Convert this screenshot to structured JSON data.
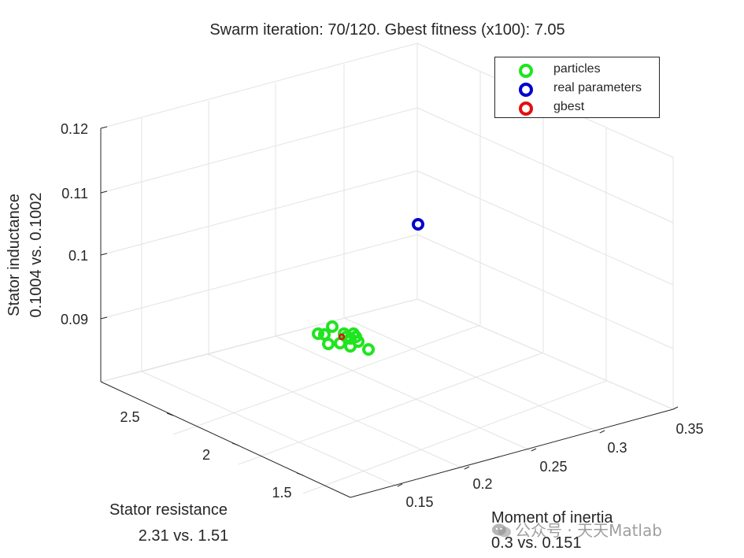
{
  "chart_data": {
    "type": "scatter",
    "title": "Swarm iteration: 70/120. Gbest fitness (x100): 7.05",
    "axes": {
      "x": {
        "label": "Moment of inertia",
        "sublabel": "0.3 vs. 0.151",
        "ticks": [
          "0.15",
          "0.2",
          "0.25",
          "0.3",
          "0.35"
        ]
      },
      "y": {
        "label": "Stator resistance",
        "sublabel": "2.31 vs. 1.51",
        "ticks": [
          "1.5",
          "2",
          "2.5"
        ]
      },
      "z": {
        "label": "Stator inductance",
        "sublabel": "0.1004 vs. 0.1002",
        "ticks": [
          "0.09",
          "0.1",
          "0.11",
          "0.12"
        ]
      }
    },
    "grid": true,
    "legend_position": "top-right",
    "series": [
      {
        "name": "particles",
        "color": "#1fe51f"
      },
      {
        "name": "real parameters",
        "color": "#0000cc"
      },
      {
        "name": "gbest",
        "color": "#e01010"
      }
    ]
  },
  "watermark": "公众号 · 天天Matlab"
}
